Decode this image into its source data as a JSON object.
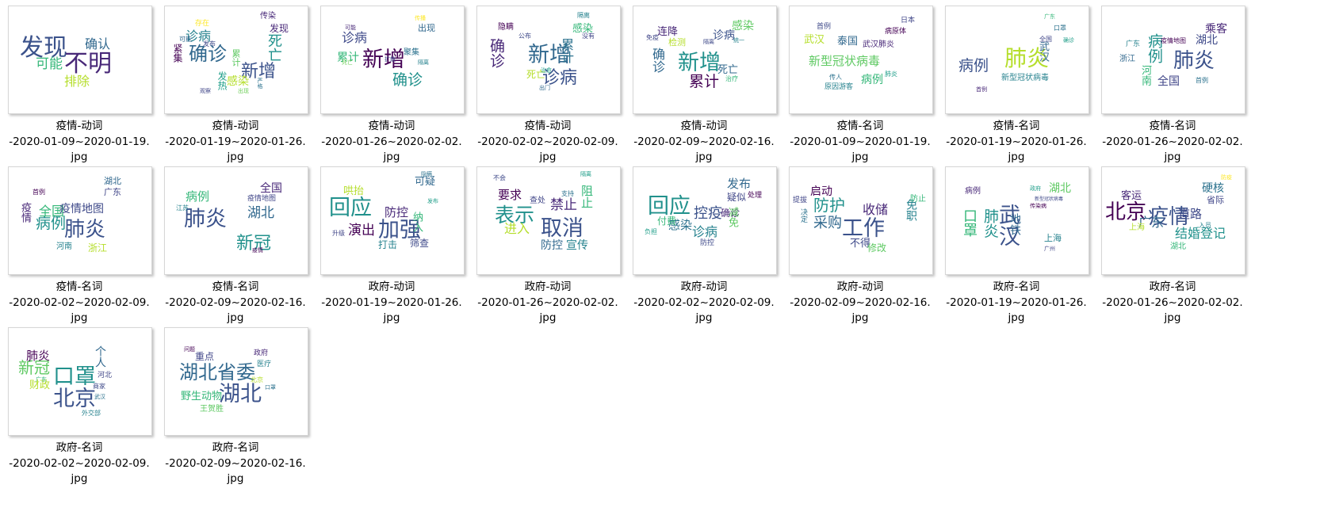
{
  "files": [
    {
      "caption": [
        "疫情-动词",
        "-2020-01-09~2020-01-19.",
        "jpg"
      ],
      "words": [
        {
          "t": "发现",
          "c": "#3b528b",
          "s": 30
        },
        {
          "t": "不明",
          "c": "#482878",
          "s": 30
        },
        {
          "t": "确认",
          "c": "#31688e",
          "s": 16
        },
        {
          "t": "可能",
          "c": "#35b779",
          "s": 17
        },
        {
          "t": "排除",
          "c": "#b5de2b",
          "s": 16
        }
      ]
    },
    {
      "caption": [
        "疫情-动词",
        "-2020-01-19~2020-01-26.",
        "jpg"
      ],
      "words": [
        {
          "t": "确诊",
          "c": "#31688e",
          "s": 24
        },
        {
          "t": "新增",
          "c": "#3b528b",
          "s": 22
        },
        {
          "t": "诊病",
          "c": "#26828e",
          "s": 16
        },
        {
          "t": "死亡",
          "c": "#21918c",
          "s": 18
        },
        {
          "t": "发现",
          "c": "#482878",
          "s": 12
        },
        {
          "t": "紧集",
          "c": "#440154",
          "s": 12
        },
        {
          "t": "感染",
          "c": "#b5de2b",
          "s": 14
        },
        {
          "t": "累计",
          "c": "#5ec962",
          "s": 11
        },
        {
          "t": "传染",
          "c": "#482878",
          "s": 10
        },
        {
          "t": "发布",
          "c": "#3e4989",
          "s": 8
        },
        {
          "t": "存在",
          "c": "#fde725",
          "s": 9
        },
        {
          "t": "可能",
          "c": "#31688e",
          "s": 8
        },
        {
          "t": "发热",
          "c": "#1f9e89",
          "s": 12
        },
        {
          "t": "观察",
          "c": "#404688",
          "s": 7
        },
        {
          "t": "出现",
          "c": "#6ece58",
          "s": 7
        },
        {
          "t": "严格",
          "c": "#2c728e",
          "s": 7
        }
      ]
    },
    {
      "caption": [
        "疫情-动词",
        "-2020-01-26~2020-02-02.",
        "jpg"
      ],
      "words": [
        {
          "t": "新增",
          "c": "#440154",
          "s": 27
        },
        {
          "t": "确诊",
          "c": "#21918c",
          "s": 19
        },
        {
          "t": "诊病",
          "c": "#3e4989",
          "s": 16
        },
        {
          "t": "累计",
          "c": "#35b779",
          "s": 14
        },
        {
          "t": "出现",
          "c": "#31688e",
          "s": 11
        },
        {
          "t": "聚集",
          "c": "#2c728e",
          "s": 10
        },
        {
          "t": "传播",
          "c": "#fde725",
          "s": 7
        },
        {
          "t": "扩散",
          "c": "#404688",
          "s": 7
        },
        {
          "t": "可能",
          "c": "#482878",
          "s": 7
        },
        {
          "t": "死亡",
          "c": "#6ece58",
          "s": 7
        },
        {
          "t": "隔离",
          "c": "#26828e",
          "s": 7
        }
      ]
    },
    {
      "caption": [
        "疫情-动词",
        "-2020-02-02~2020-02-09.",
        "jpg"
      ],
      "words": [
        {
          "t": "新增",
          "c": "#31688e",
          "s": 27
        },
        {
          "t": "诊病",
          "c": "#3b528b",
          "s": 22
        },
        {
          "t": "确诊",
          "c": "#482878",
          "s": 19
        },
        {
          "t": "累计",
          "c": "#2c728e",
          "s": 16
        },
        {
          "t": "感染",
          "c": "#35b779",
          "s": 13
        },
        {
          "t": "隐瞒",
          "c": "#440154",
          "s": 10
        },
        {
          "t": "死亡",
          "c": "#b5de2b",
          "s": 12
        },
        {
          "t": "公布",
          "c": "#3e4989",
          "s": 8
        },
        {
          "t": "隔离",
          "c": "#26828e",
          "s": 8
        },
        {
          "t": "没有",
          "c": "#404688",
          "s": 8
        },
        {
          "t": "治愈",
          "c": "#1f9e89",
          "s": 7
        },
        {
          "t": "出门",
          "c": "#31688e",
          "s": 7
        }
      ]
    },
    {
      "caption": [
        "疫情-动词",
        "-2020-02-09~2020-02-16.",
        "jpg"
      ],
      "words": [
        {
          "t": "新增",
          "c": "#21918c",
          "s": 27
        },
        {
          "t": "累计",
          "c": "#440154",
          "s": 19
        },
        {
          "t": "确诊",
          "c": "#31688e",
          "s": 16
        },
        {
          "t": "诊病",
          "c": "#3b528b",
          "s": 14
        },
        {
          "t": "感染",
          "c": "#5ec962",
          "s": 14
        },
        {
          "t": "连降",
          "c": "#482878",
          "s": 13
        },
        {
          "t": "死亡",
          "c": "#31688e",
          "s": 13
        },
        {
          "t": "检测",
          "c": "#b5de2b",
          "s": 11
        },
        {
          "t": "治疗",
          "c": "#35b779",
          "s": 8
        },
        {
          "t": "免疫",
          "c": "#404688",
          "s": 8
        },
        {
          "t": "隔离",
          "c": "#3e4989",
          "s": 7
        },
        {
          "t": "统一",
          "c": "#26828e",
          "s": 7
        }
      ]
    },
    {
      "caption": [
        "疫情-名词",
        "-2020-01-09~2020-01-19.",
        "jpg"
      ],
      "words": [
        {
          "t": "新型冠状病毒",
          "c": "#5ec962",
          "s": 15
        },
        {
          "t": "武汉",
          "c": "#b5de2b",
          "s": 13
        },
        {
          "t": "泰国",
          "c": "#31688e",
          "s": 13
        },
        {
          "t": "病例",
          "c": "#35b779",
          "s": 14
        },
        {
          "t": "武汉肺炎",
          "c": "#482878",
          "s": 10
        },
        {
          "t": "首例",
          "c": "#3e4989",
          "s": 9
        },
        {
          "t": "日本",
          "c": "#404688",
          "s": 9
        },
        {
          "t": "病原体",
          "c": "#440154",
          "s": 9
        },
        {
          "t": "原因游客",
          "c": "#26828e",
          "s": 9
        },
        {
          "t": "传人",
          "c": "#2c728e",
          "s": 8
        },
        {
          "t": "肺炎",
          "c": "#1f9e89",
          "s": 8
        }
      ]
    },
    {
      "caption": [
        "疫情-名词",
        "-2020-01-19~2020-01-26.",
        "jpg"
      ],
      "words": [
        {
          "t": "肺炎",
          "c": "#b5de2b",
          "s": 28
        },
        {
          "t": "病例",
          "c": "#3b528b",
          "s": 19
        },
        {
          "t": "武汉",
          "c": "#31688e",
          "s": 13
        },
        {
          "t": "新型冠状病毒",
          "c": "#26828e",
          "s": 10
        },
        {
          "t": "全国",
          "c": "#404688",
          "s": 8
        },
        {
          "t": "口罩",
          "c": "#2c728e",
          "s": 8
        },
        {
          "t": "首例",
          "c": "#482878",
          "s": 7
        },
        {
          "t": "广东",
          "c": "#35b779",
          "s": 7
        },
        {
          "t": "确诊",
          "c": "#1f9e89",
          "s": 7
        }
      ]
    },
    {
      "caption": [
        "疫情-名词",
        "-2020-01-26~2020-02-02.",
        "jpg"
      ],
      "words": [
        {
          "t": "肺炎",
          "c": "#3b528b",
          "s": 26
        },
        {
          "t": "病例",
          "c": "#21918c",
          "s": 19
        },
        {
          "t": "乘客",
          "c": "#482878",
          "s": 14
        },
        {
          "t": "湖北",
          "c": "#3e4989",
          "s": 14
        },
        {
          "t": "全国",
          "c": "#404688",
          "s": 14
        },
        {
          "t": "河南",
          "c": "#35b779",
          "s": 13
        },
        {
          "t": "浙江",
          "c": "#31688e",
          "s": 10
        },
        {
          "t": "疫情地图",
          "c": "#440154",
          "s": 8
        },
        {
          "t": "广东",
          "c": "#26828e",
          "s": 9
        },
        {
          "t": "首例",
          "c": "#2c728e",
          "s": 8
        }
      ]
    },
    {
      "caption": [
        "疫情-名词",
        "-2020-02-02~2020-02-09.",
        "jpg"
      ],
      "words": [
        {
          "t": "肺炎",
          "c": "#3b528b",
          "s": 26
        },
        {
          "t": "病例",
          "c": "#21918c",
          "s": 19
        },
        {
          "t": "全国",
          "c": "#35b779",
          "s": 16
        },
        {
          "t": "疫情地图",
          "c": "#3e4989",
          "s": 14
        },
        {
          "t": "疫情",
          "c": "#482878",
          "s": 13
        },
        {
          "t": "湖北",
          "c": "#31688e",
          "s": 11
        },
        {
          "t": "广东",
          "c": "#404688",
          "s": 11
        },
        {
          "t": "河南",
          "c": "#26828e",
          "s": 10
        },
        {
          "t": "浙江",
          "c": "#b5de2b",
          "s": 12
        },
        {
          "t": "首例",
          "c": "#440154",
          "s": 8
        }
      ]
    },
    {
      "caption": [
        "疫情-名词",
        "-2020-02-09~2020-02-16.",
        "jpg"
      ],
      "words": [
        {
          "t": "肺炎",
          "c": "#3b528b",
          "s": 27
        },
        {
          "t": "新冠",
          "c": "#21918c",
          "s": 22
        },
        {
          "t": "湖北",
          "c": "#31688e",
          "s": 17
        },
        {
          "t": "病例",
          "c": "#35b779",
          "s": 15
        },
        {
          "t": "全国",
          "c": "#482878",
          "s": 14
        },
        {
          "t": "疫情地图",
          "c": "#404688",
          "s": 9
        },
        {
          "t": "江苏",
          "c": "#26828e",
          "s": 8
        },
        {
          "t": "疫情",
          "c": "#440154",
          "s": 7
        }
      ]
    },
    {
      "caption": [
        "政府-动词",
        "-2020-01-19~2020-01-26.",
        "jpg"
      ],
      "words": [
        {
          "t": "回应",
          "c": "#21918c",
          "s": 27
        },
        {
          "t": "加强",
          "c": "#3b528b",
          "s": 27
        },
        {
          "t": "演出",
          "c": "#440154",
          "s": 17
        },
        {
          "t": "防控",
          "c": "#482878",
          "s": 15
        },
        {
          "t": "哄抬",
          "c": "#b5de2b",
          "s": 13
        },
        {
          "t": "可疑",
          "c": "#31688e",
          "s": 13
        },
        {
          "t": "纳入",
          "c": "#35b779",
          "s": 13
        },
        {
          "t": "打击",
          "c": "#26828e",
          "s": 12
        },
        {
          "t": "筛查",
          "c": "#3e4989",
          "s": 12
        },
        {
          "t": "升级",
          "c": "#404688",
          "s": 8
        },
        {
          "t": "隐瞒",
          "c": "#2c728e",
          "s": 7
        },
        {
          "t": "发布",
          "c": "#1f9e89",
          "s": 7
        }
      ]
    },
    {
      "caption": [
        "政府-动词",
        "-2020-01-26~2020-02-02.",
        "jpg"
      ],
      "words": [
        {
          "t": "表示",
          "c": "#21918c",
          "s": 25
        },
        {
          "t": "取消",
          "c": "#3b528b",
          "s": 27
        },
        {
          "t": "禁止",
          "c": "#482878",
          "s": 17
        },
        {
          "t": "进入",
          "c": "#b5de2b",
          "s": 16
        },
        {
          "t": "要求",
          "c": "#440154",
          "s": 15
        },
        {
          "t": "防控",
          "c": "#31688e",
          "s": 14
        },
        {
          "t": "宣传",
          "c": "#26828e",
          "s": 14
        },
        {
          "t": "阻止",
          "c": "#35b779",
          "s": 15
        },
        {
          "t": "查处",
          "c": "#404688",
          "s": 10
        },
        {
          "t": "不会",
          "c": "#3e4989",
          "s": 8
        },
        {
          "t": "支持",
          "c": "#2c728e",
          "s": 8
        },
        {
          "t": "隔离",
          "c": "#1f9e89",
          "s": 7
        }
      ]
    },
    {
      "caption": [
        "政府-动词",
        "-2020-02-02~2020-02-09.",
        "jpg"
      ],
      "words": [
        {
          "t": "回应",
          "c": "#21918c",
          "s": 27
        },
        {
          "t": "控疫",
          "c": "#3b528b",
          "s": 18
        },
        {
          "t": "感染",
          "c": "#2c728e",
          "s": 15
        },
        {
          "t": "诊病",
          "c": "#26828e",
          "s": 16
        },
        {
          "t": "发布",
          "c": "#31688e",
          "s": 15
        },
        {
          "t": "疑似",
          "c": "#404688",
          "s": 12
        },
        {
          "t": "确诊",
          "c": "#482878",
          "s": 12
        },
        {
          "t": "付费",
          "c": "#35b779",
          "s": 12
        },
        {
          "t": "减免",
          "c": "#5ec962",
          "s": 13
        },
        {
          "t": "防控",
          "c": "#3e4989",
          "s": 9
        },
        {
          "t": "处理",
          "c": "#440154",
          "s": 9
        },
        {
          "t": "负担",
          "c": "#1f9e89",
          "s": 8
        }
      ]
    },
    {
      "caption": [
        "政府-动词",
        "-2020-02-09~2020-02-16.",
        "jpg"
      ],
      "words": [
        {
          "t": "工作",
          "c": "#3b528b",
          "s": 27
        },
        {
          "t": "防护",
          "c": "#21918c",
          "s": 20
        },
        {
          "t": "采购",
          "c": "#31688e",
          "s": 18
        },
        {
          "t": "收储",
          "c": "#482878",
          "s": 16
        },
        {
          "t": "启动",
          "c": "#440154",
          "s": 14
        },
        {
          "t": "免职",
          "c": "#26828e",
          "s": 14
        },
        {
          "t": "不得",
          "c": "#3e4989",
          "s": 13
        },
        {
          "t": "修改",
          "c": "#5ec962",
          "s": 12
        },
        {
          "t": "提拔",
          "c": "#404688",
          "s": 9
        },
        {
          "t": "防止",
          "c": "#35b779",
          "s": 10
        },
        {
          "t": "决定",
          "c": "#2c728e",
          "s": 9
        }
      ]
    },
    {
      "caption": [
        "政府-名词",
        "-2020-01-19~2020-01-26.",
        "jpg"
      ],
      "words": [
        {
          "t": "武汉",
          "c": "#3b528b",
          "s": 27
        },
        {
          "t": "肺炎",
          "c": "#21918c",
          "s": 19
        },
        {
          "t": "口罩",
          "c": "#35b779",
          "s": 18
        },
        {
          "t": "湖北",
          "c": "#5ec962",
          "s": 14
        },
        {
          "t": "地铁",
          "c": "#31688e",
          "s": 14
        },
        {
          "t": "上海",
          "c": "#26828e",
          "s": 11
        },
        {
          "t": "病例",
          "c": "#482878",
          "s": 10
        },
        {
          "t": "广州",
          "c": "#404688",
          "s": 7
        },
        {
          "t": "传染病",
          "c": "#440154",
          "s": 7
        },
        {
          "t": "政府",
          "c": "#1f9e89",
          "s": 7
        },
        {
          "t": "新型冠状病毒",
          "c": "#3e4989",
          "s": 6
        }
      ]
    },
    {
      "caption": [
        "政府-名词",
        "-2020-01-26~2020-02-02.",
        "jpg"
      ],
      "words": [
        {
          "t": "北京",
          "c": "#440154",
          "s": 26
        },
        {
          "t": "疫情",
          "c": "#3b528b",
          "s": 26
        },
        {
          "t": "结婚登记",
          "c": "#21918c",
          "s": 16
        },
        {
          "t": "广东",
          "c": "#31688e",
          "s": 16
        },
        {
          "t": "道路",
          "c": "#3e4989",
          "s": 15
        },
        {
          "t": "硬核",
          "c": "#2c728e",
          "s": 14
        },
        {
          "t": "客运",
          "c": "#482878",
          "s": 13
        },
        {
          "t": "湖北",
          "c": "#35b779",
          "s": 10
        },
        {
          "t": "省际",
          "c": "#404688",
          "s": 11
        },
        {
          "t": "上海",
          "c": "#b5de2b",
          "s": 10
        },
        {
          "t": "入员",
          "c": "#26828e",
          "s": 8
        },
        {
          "t": "防疫",
          "c": "#fde725",
          "s": 7
        }
      ]
    },
    {
      "caption": [
        "政府-名词",
        "-2020-02-02~2020-02-09.",
        "jpg"
      ],
      "words": [
        {
          "t": "北京",
          "c": "#3b528b",
          "s": 27
        },
        {
          "t": "口罩",
          "c": "#21918c",
          "s": 27
        },
        {
          "t": "新冠",
          "c": "#5ec962",
          "s": 20
        },
        {
          "t": "肺炎",
          "c": "#440154",
          "s": 15
        },
        {
          "t": "个人",
          "c": "#31688e",
          "s": 14
        },
        {
          "t": "财政",
          "c": "#b5de2b",
          "s": 13
        },
        {
          "t": "河北",
          "c": "#404688",
          "s": 9
        },
        {
          "t": "外交部",
          "c": "#26828e",
          "s": 8
        },
        {
          "t": "商家",
          "c": "#3e4989",
          "s": 8
        },
        {
          "t": "武汉",
          "c": "#2c728e",
          "s": 7
        },
        {
          "t": "广东",
          "c": "#35b779",
          "s": 7
        }
      ]
    },
    {
      "caption": [
        "政府-名词",
        "-2020-02-09~2020-02-16.",
        "jpg"
      ],
      "words": [
        {
          "t": "湖北省委",
          "c": "#31688e",
          "s": 24
        },
        {
          "t": "湖北",
          "c": "#3b528b",
          "s": 27
        },
        {
          "t": "野生动物",
          "c": "#35b779",
          "s": 13
        },
        {
          "t": "重点",
          "c": "#404688",
          "s": 12
        },
        {
          "t": "王贺胜",
          "c": "#5ec962",
          "s": 10
        },
        {
          "t": "政府",
          "c": "#482878",
          "s": 9
        },
        {
          "t": "医疗",
          "c": "#26828e",
          "s": 9
        },
        {
          "t": "北京",
          "c": "#b5de2b",
          "s": 8
        },
        {
          "t": "问题",
          "c": "#440154",
          "s": 7
        },
        {
          "t": "口罩",
          "c": "#2c728e",
          "s": 7
        }
      ]
    }
  ]
}
